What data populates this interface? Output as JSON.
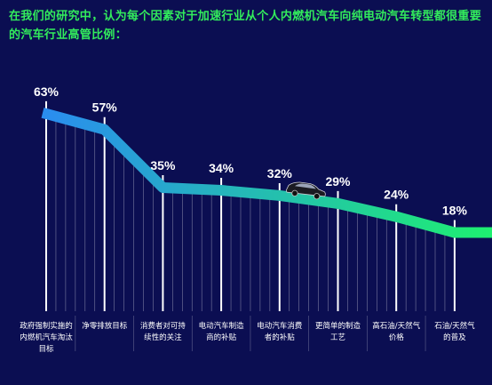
{
  "title": "在我们的研究中，认为每个因素对于加速行业从个人内燃机汽车向纯电动汽车转型都很重要的汽车行业高管比例：",
  "colors": {
    "background": "#0b0e52",
    "title": "#32ec5c",
    "line_start": "#2a8cf0",
    "line_end": "#1ef070"
  },
  "icons": {
    "car": "electric-car-icon"
  },
  "chart_data": {
    "type": "line",
    "title": "在我们的研究中，认为每个因素对于加速行业从个人内燃机汽车向纯电动汽车转型都很重要的汽车行业高管比例：",
    "unit": "%",
    "categories": [
      "政府强制实施的内燃机汽车淘汰目标",
      "净零排放目标",
      "消费者对可持续性的关注",
      "电动汽车制造商的补贴",
      "电动汽车消费者的补贴",
      "更简单的制造工艺",
      "高石油/天然气价格",
      "石油/天然气的普及"
    ],
    "category_lines": [
      [
        "政府强制实施的",
        "内燃机汽车淘汰",
        "目标"
      ],
      [
        "净零排放目标"
      ],
      [
        "消费者对可持",
        "续性的关注"
      ],
      [
        "电动汽车制造",
        "商的补贴"
      ],
      [
        "电动汽车消费",
        "者的补贴"
      ],
      [
        "更简单的制造",
        "工艺"
      ],
      [
        "高石油/天然气",
        "价格"
      ],
      [
        "石油/天然气",
        "的普及"
      ]
    ],
    "values": [
      63,
      57,
      35,
      34,
      32,
      29,
      24,
      18
    ],
    "labels": [
      "63%",
      "57%",
      "35%",
      "34%",
      "32%",
      "29%",
      "24%",
      "18%"
    ],
    "ylim": [
      0,
      70
    ],
    "grid": false,
    "legend": "none"
  }
}
